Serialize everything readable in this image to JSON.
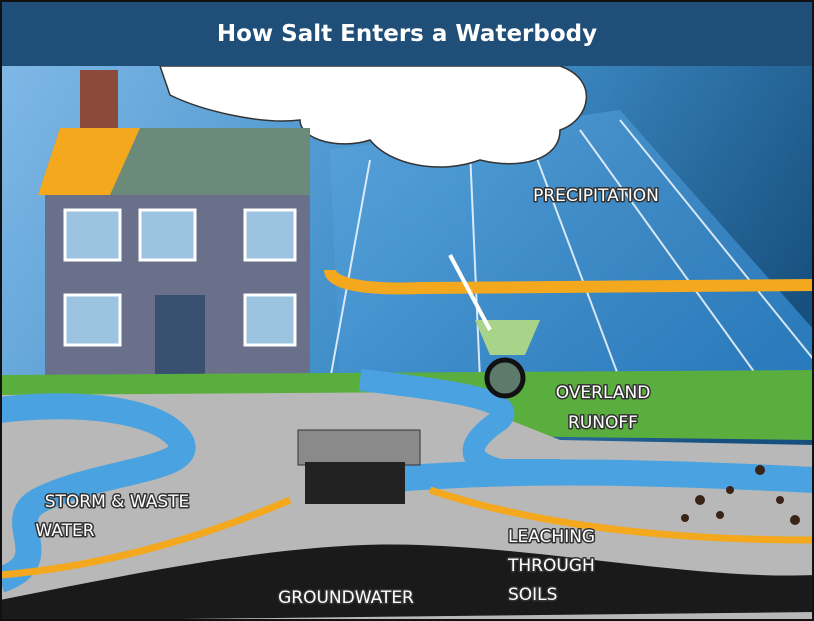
{
  "header": {
    "title": "How Salt Enters a Waterbody"
  },
  "labels": [
    {
      "lines": [
        "PRECIPITATION"
      ]
    },
    {
      "lines": [
        "OVERLAND",
        "RUNOFF"
      ]
    },
    {
      "lines": [
        "STORM & WASTE",
        "WATER"
      ]
    },
    {
      "lines": [
        "LEACHING",
        "THROUGH",
        "SOILS"
      ]
    },
    {
      "lines": [
        "GROUNDWATER"
      ]
    }
  ]
}
